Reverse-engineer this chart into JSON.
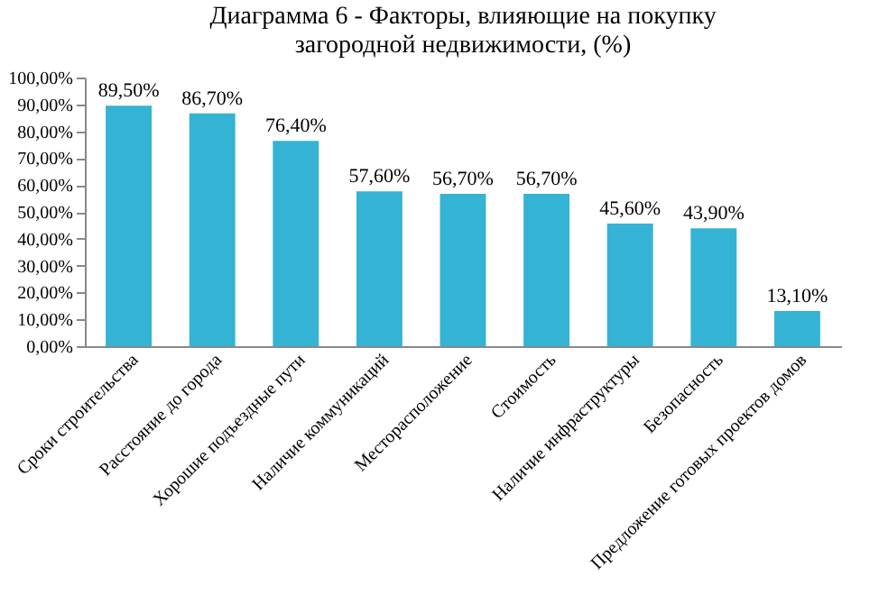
{
  "chart_data": {
    "type": "bar",
    "title": "Диаграмма 6 - Факторы, влияющие на покупку загородной недвижимости, (%)",
    "categories": [
      "Сроки строительства",
      "Расстояние до города",
      "Хорошие подъездные пути",
      "Наличие коммуникаций",
      "Месторасположение",
      "Стоимость",
      "Наличие инфраструктуры",
      "Безопасность",
      "Предложение готовых проектов домов"
    ],
    "values": [
      89.5,
      86.7,
      76.4,
      57.6,
      56.7,
      56.7,
      45.6,
      43.9,
      13.1
    ],
    "value_labels": [
      "89,50%",
      "86,70%",
      "76,40%",
      "57,60%",
      "56,70%",
      "56,70%",
      "45,60%",
      "43,90%",
      "13,10%"
    ],
    "color": "#35b3d4",
    "ylim": [
      0,
      100
    ],
    "yticks": [
      {
        "value": 0,
        "label": "0,00%"
      },
      {
        "value": 10,
        "label": "10,00%"
      },
      {
        "value": 20,
        "label": "20,00%"
      },
      {
        "value": 30,
        "label": "30,00%"
      },
      {
        "value": 40,
        "label": "40,00%"
      },
      {
        "value": 50,
        "label": "50,00%"
      },
      {
        "value": 60,
        "label": "60,00%"
      },
      {
        "value": 70,
        "label": "70,00%"
      },
      {
        "value": 80,
        "label": "80,00%"
      },
      {
        "value": 90,
        "label": "90,00%"
      },
      {
        "value": 100,
        "label": "100,00%"
      }
    ],
    "grid": false
  }
}
